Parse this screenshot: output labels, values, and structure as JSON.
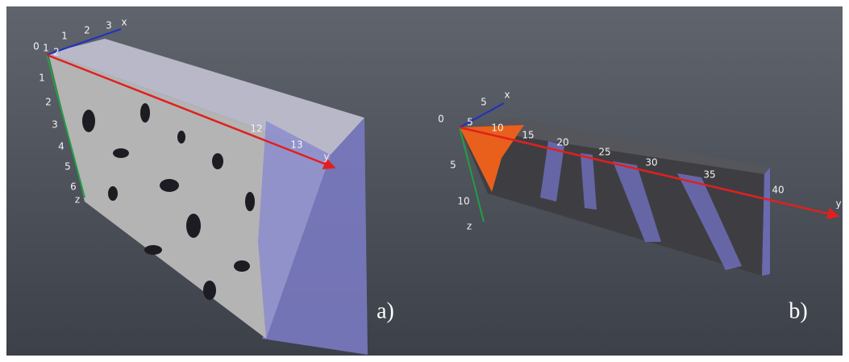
{
  "panels": [
    {
      "label": "a)",
      "axes": {
        "x": {
          "ticks": [
            "0",
            "1",
            "2",
            "3"
          ],
          "name": "x"
        },
        "y": {
          "ticks": [
            "1",
            "2",
            "12",
            "13"
          ],
          "name": "y"
        },
        "z": {
          "ticks": [
            "1",
            "2",
            "3",
            "4",
            "5",
            "6"
          ],
          "name": "z"
        }
      }
    },
    {
      "label": "b)",
      "axes": {
        "x": {
          "ticks": [
            "0",
            "5"
          ],
          "name": "x"
        },
        "y": {
          "ticks": [
            "5",
            "10",
            "15",
            "20",
            "25",
            "30",
            "35",
            "40"
          ],
          "name": "y"
        },
        "z": {
          "ticks": [
            "5",
            "10"
          ],
          "name": "z"
        }
      }
    }
  ]
}
